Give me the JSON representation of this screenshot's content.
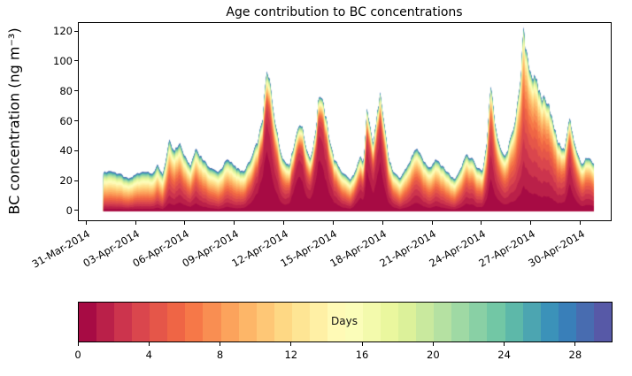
{
  "chart_data": {
    "type": "area",
    "stacked": true,
    "title": "Age contribution to BC concentrations",
    "xlabel": "",
    "ylabel": "BC concentration (ng m⁻³)",
    "ylim": [
      -6,
      126
    ],
    "xlim_days": [
      -0.5,
      31.8
    ],
    "grid": false,
    "y_ticks": [
      0,
      20,
      40,
      60,
      80,
      100,
      120
    ],
    "x_tick_days": [
      0,
      3,
      6,
      9,
      12,
      15,
      18,
      21,
      24,
      27,
      30
    ],
    "x_tick_labels": [
      "31-Mar-2014",
      "03-Apr-2014",
      "06-Apr-2014",
      "09-Apr-2014",
      "12-Apr-2014",
      "15-Apr-2014",
      "18-Apr-2014",
      "21-Apr-2014",
      "24-Apr-2014",
      "27-Apr-2014",
      "30-Apr-2014"
    ],
    "age_layers": 30,
    "colormap": {
      "name": "Spectral",
      "stops": [
        "#9e0142",
        "#d53e4f",
        "#f46d43",
        "#fdae61",
        "#fee08b",
        "#ffffbf",
        "#e6f598",
        "#abdda4",
        "#66c2a5",
        "#3288bd",
        "#5e4fa2"
      ]
    },
    "colorbar": {
      "label": "Days",
      "ticks": [
        0,
        4,
        8,
        12,
        16,
        20,
        24,
        28
      ],
      "max": 30
    },
    "series_model": {
      "description": "Stacked BC concentration by air-mass age (days 0-29, youngest at bottom in dark red, oldest on top in blue). total = background + fresh at each time; layer values = background*background_age_profile + fresh*fresh_age_profile(fresh_mean_age). Days counted from 31-Mar-2014.",
      "background_profile": {
        "shape": 2.2,
        "scale": 6.2
      },
      "fresh_profile": {
        "shape": 1.2
      },
      "x_days": [
        1.0,
        1.5,
        2.0,
        2.5,
        3.0,
        3.5,
        4.0,
        4.3,
        4.6,
        5.0,
        5.3,
        5.6,
        6.0,
        6.3,
        6.6,
        7.0,
        7.5,
        8.0,
        8.5,
        9.0,
        9.5,
        10.0,
        10.4,
        10.7,
        10.9,
        11.1,
        11.4,
        11.7,
        12.0,
        12.3,
        12.6,
        12.9,
        13.1,
        13.4,
        13.6,
        13.9,
        14.1,
        14.4,
        14.7,
        15.0,
        15.5,
        16.0,
        16.3,
        16.6,
        16.8,
        17.0,
        17.2,
        17.4,
        17.6,
        17.8,
        18.0,
        18.3,
        18.6,
        19.0,
        19.5,
        20.0,
        20.4,
        20.8,
        21.2,
        21.6,
        22.0,
        22.3,
        22.7,
        23.0,
        23.4,
        23.7,
        24.0,
        24.3,
        24.5,
        24.8,
        25.1,
        25.4,
        25.7,
        26.0,
        26.3,
        26.5,
        26.8,
        27.0,
        27.3,
        27.6,
        28.0,
        28.3,
        28.6,
        29.0,
        29.3,
        29.6,
        30.0,
        30.4,
        30.8
      ],
      "background": [
        22,
        23,
        21,
        19,
        20,
        22,
        20,
        22,
        19,
        24,
        22,
        23,
        21,
        19,
        22,
        21,
        20,
        19,
        22,
        20,
        18,
        20,
        20,
        20,
        22,
        22,
        20,
        18,
        17,
        16,
        16,
        16,
        16,
        16,
        15,
        15,
        16,
        16,
        16,
        16,
        16,
        15,
        15,
        16,
        15,
        17,
        16,
        16,
        17,
        18,
        18,
        17,
        16,
        16,
        18,
        20,
        19,
        18,
        19,
        18,
        17,
        15,
        17,
        19,
        18,
        17,
        16,
        18,
        20,
        19,
        18,
        17,
        18,
        19,
        20,
        22,
        22,
        21,
        21,
        20,
        20,
        19,
        18,
        17,
        17,
        17,
        16,
        17,
        16
      ],
      "fresh": [
        4,
        4,
        4,
        3,
        5,
        5,
        5,
        9,
        5,
        23,
        18,
        23,
        14,
        11,
        20,
        14,
        9,
        7,
        13,
        10,
        8,
        16,
        28,
        45,
        71,
        64,
        42,
        24,
        16,
        15,
        30,
        44,
        38,
        22,
        21,
        40,
        64,
        52,
        34,
        19,
        10,
        6,
        12,
        20,
        16,
        51,
        38,
        30,
        44,
        65,
        46,
        19,
        10,
        6,
        13,
        23,
        15,
        11,
        16,
        12,
        8,
        6,
        12,
        19,
        17,
        12,
        10,
        28,
        68,
        37,
        23,
        19,
        29,
        43,
        62,
        97,
        79,
        70,
        64,
        56,
        54,
        39,
        28,
        24,
        45,
        29,
        15,
        19,
        15
      ],
      "fresh_mean_age": [
        2,
        2,
        2,
        2,
        2.5,
        2.5,
        2.5,
        3,
        3,
        3.5,
        3.5,
        3,
        3,
        3,
        3,
        3.5,
        3.5,
        4,
        3.5,
        4,
        3,
        2,
        1.5,
        1.2,
        1.2,
        1.5,
        2,
        2.5,
        3,
        2,
        1.3,
        1.2,
        1.5,
        2,
        1.8,
        1.3,
        1.2,
        1.5,
        2,
        2.5,
        3,
        3,
        2,
        1.7,
        1.7,
        1.3,
        1.6,
        1.8,
        1.5,
        1.3,
        1.7,
        2.5,
        3,
        3.5,
        3.5,
        3,
        3.5,
        4,
        3.5,
        4,
        4,
        4,
        3.5,
        3,
        3,
        3.5,
        3,
        2.5,
        2.2,
        2.8,
        3,
        3.5,
        4,
        4.5,
        4.5,
        4.5,
        4.5,
        4.5,
        4.5,
        4.5,
        4,
        4,
        4,
        3,
        1.8,
        2.5,
        3.5,
        3.5,
        3.5
      ]
    }
  }
}
